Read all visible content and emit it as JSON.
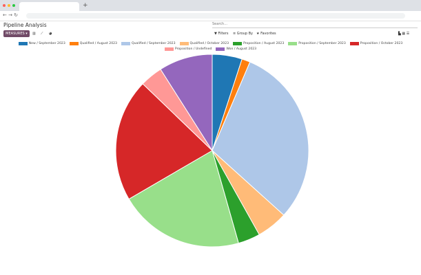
{
  "browser": {
    "new_tab": "+"
  },
  "header": {
    "title": "Pipeline Analysis",
    "search_placeholder": "Search...",
    "measures": "MEASURES",
    "filters": "Filters",
    "group_by": "Group By",
    "favorites": "Favorites"
  },
  "chart_data": {
    "type": "pie",
    "categories": [
      "New / September 2023",
      "Qualified / August 2023",
      "Qualified / September 2023",
      "Qualified / October 2023",
      "Proposition / August 2023",
      "Proposition / September 2023",
      "Proposition / October 2023",
      "Proposition / Undefined",
      "Won / August 2023"
    ],
    "values": [
      5,
      1.4,
      30.3,
      5.2,
      3.7,
      21,
      20.6,
      3.8,
      9
    ],
    "colors": [
      "#1f77b4",
      "#ff7f0e",
      "#aec7e8",
      "#ffbb78",
      "#2ca02c",
      "#98df8a",
      "#d62728",
      "#ff9896",
      "#9467bd"
    ],
    "legend": "top"
  }
}
